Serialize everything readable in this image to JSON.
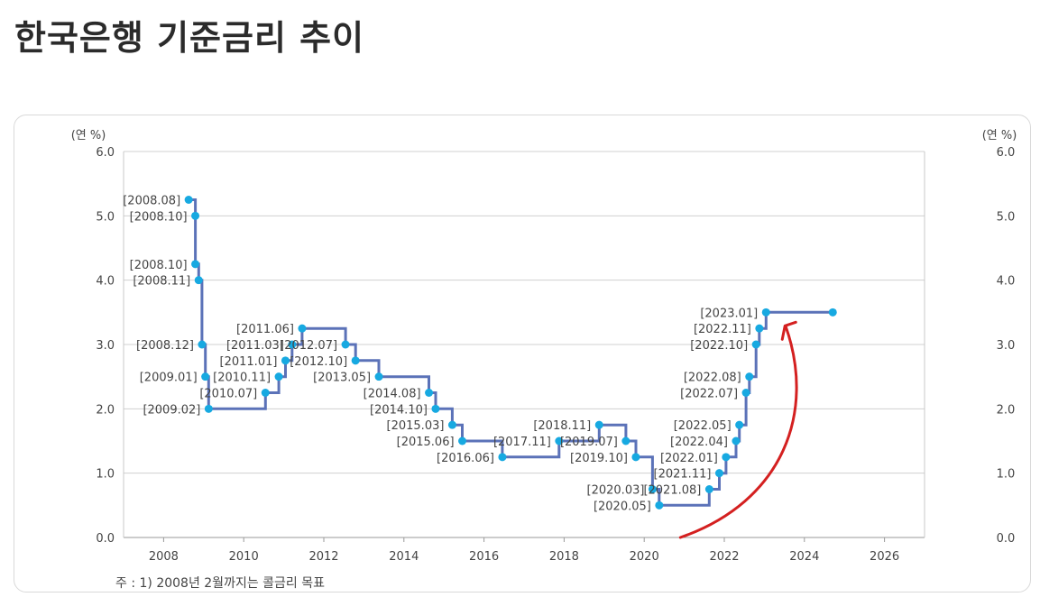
{
  "page": {
    "title": "한국은행 기준금리 추이"
  },
  "chart_data": {
    "type": "line",
    "step": true,
    "ylabel_left": "(연 %)",
    "ylabel_right": "(연 %)",
    "xlim": [
      2007,
      2027
    ],
    "ylim": [
      0,
      6
    ],
    "x_ticks": [
      "2008",
      "2010",
      "2012",
      "2014",
      "2016",
      "2018",
      "2020",
      "2022",
      "2024",
      "2026"
    ],
    "y_ticks": [
      "0.0",
      "1.0",
      "2.0",
      "3.0",
      "4.0",
      "5.0",
      "6.0"
    ],
    "grid": "horizontal",
    "line_color": "#5b72b8",
    "marker_color": "#17a9e1",
    "end_value": {
      "x": "2024.09",
      "y": 3.5
    },
    "points": [
      {
        "label": "[2008.08]",
        "y": 5.25
      },
      {
        "label": "[2008.10]",
        "y": 5.0
      },
      {
        "label": "[2008.10]",
        "y": 4.25
      },
      {
        "label": "[2008.11]",
        "y": 4.0
      },
      {
        "label": "[2008.12]",
        "y": 3.0
      },
      {
        "label": "[2009.01]",
        "y": 2.5
      },
      {
        "label": "[2009.02]",
        "y": 2.0
      },
      {
        "label": "[2010.07]",
        "y": 2.25
      },
      {
        "label": "[2010.11]",
        "y": 2.5
      },
      {
        "label": "[2011.01]",
        "y": 2.75
      },
      {
        "label": "[2011.03]",
        "y": 3.0
      },
      {
        "label": "[2011.06]",
        "y": 3.25
      },
      {
        "label": "[2012.07]",
        "y": 3.0
      },
      {
        "label": "[2012.10]",
        "y": 2.75
      },
      {
        "label": "[2013.05]",
        "y": 2.5
      },
      {
        "label": "[2014.08]",
        "y": 2.25
      },
      {
        "label": "[2014.10]",
        "y": 2.0
      },
      {
        "label": "[2015.03]",
        "y": 1.75
      },
      {
        "label": "[2015.06]",
        "y": 1.5
      },
      {
        "label": "[2016.06]",
        "y": 1.25
      },
      {
        "label": "[2017.11]",
        "y": 1.5
      },
      {
        "label": "[2018.11]",
        "y": 1.75
      },
      {
        "label": "[2019.07]",
        "y": 1.5
      },
      {
        "label": "[2019.10]",
        "y": 1.25
      },
      {
        "label": "[2020.03]",
        "y": 0.75
      },
      {
        "label": "[2020.05]",
        "y": 0.5
      },
      {
        "label": "[2021.08]",
        "y": 0.75
      },
      {
        "label": "[2021.11]",
        "y": 1.0
      },
      {
        "label": "[2022.01]",
        "y": 1.25
      },
      {
        "label": "[2022.04]",
        "y": 1.5
      },
      {
        "label": "[2022.05]",
        "y": 1.75
      },
      {
        "label": "[2022.07]",
        "y": 2.25
      },
      {
        "label": "[2022.08]",
        "y": 2.5
      },
      {
        "label": "[2022.10]",
        "y": 3.0
      },
      {
        "label": "[2022.11]",
        "y": 3.25
      },
      {
        "label": "[2023.01]",
        "y": 3.5
      }
    ],
    "annotation": {
      "type": "arrow",
      "color": "#d42020",
      "points_to": "[2023.01]"
    }
  },
  "footnote": "주 : 1) 2008년 2월까지는 콜금리 목표"
}
